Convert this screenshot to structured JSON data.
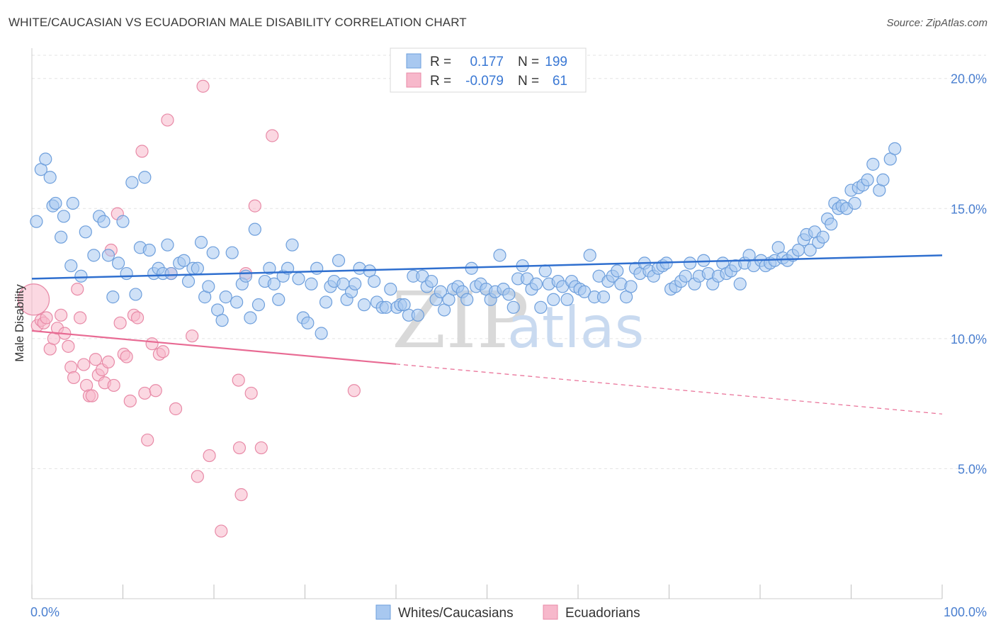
{
  "header": {
    "title": "WHITE/CAUCASIAN VS ECUADORIAN MALE DISABILITY CORRELATION CHART",
    "source": "Source: ZipAtlas.com"
  },
  "legend": {
    "rows": [
      {
        "r_label": "R =",
        "r_value": "0.177",
        "n_label": "N =",
        "n_value": "199",
        "color": "#a8c8f0"
      },
      {
        "r_label": "R =",
        "r_value": "-0.079",
        "n_label": "N =",
        "n_value": "61",
        "color": "#f7b8cb"
      }
    ]
  },
  "bottom_legend": [
    {
      "label": "Whites/Caucasians",
      "color": "#a8c8f0"
    },
    {
      "label": "Ecuadorians",
      "color": "#f7b8cb"
    }
  ],
  "watermark": {
    "zip": "ZIP",
    "atlas": "atlas"
  },
  "chart_data": {
    "type": "scatter",
    "title": "WHITE/CAUCASIAN VS ECUADORIAN MALE DISABILITY CORRELATION CHART",
    "xlabel": "",
    "ylabel": "Male Disability",
    "xlim": [
      0,
      100
    ],
    "ylim": [
      0,
      21
    ],
    "x_tick_labels": [
      "0.0%",
      "100.0%"
    ],
    "y_ticks": [
      5,
      10,
      15,
      20
    ],
    "y_tick_labels": [
      "5.0%",
      "10.0%",
      "15.0%",
      "20.0%"
    ],
    "grid": true,
    "colors": {
      "blue_fill": "#a8c8f0",
      "blue_stroke": "#6e9fdc",
      "blue_line": "#2f6fcf",
      "pink_fill": "#f7b8cb",
      "pink_stroke": "#e88aa7",
      "pink_line": "#e86a93"
    },
    "series": [
      {
        "name": "Whites/Caucasians",
        "trend": {
          "x0": 0,
          "y0": 12.3,
          "x1": 100,
          "y1": 13.2,
          "dashed_from": null
        },
        "points": [
          [
            0.5,
            14.5
          ],
          [
            1,
            16.5
          ],
          [
            1.5,
            16.9
          ],
          [
            2,
            16.2
          ],
          [
            2.3,
            15.1
          ],
          [
            2.6,
            15.2
          ],
          [
            3.2,
            13.9
          ],
          [
            3.5,
            14.7
          ],
          [
            4.3,
            12.8
          ],
          [
            4.5,
            15.2
          ],
          [
            5.4,
            12.4
          ],
          [
            5.9,
            14.1
          ],
          [
            6.8,
            13.2
          ],
          [
            7.4,
            14.7
          ],
          [
            7.9,
            14.5
          ],
          [
            8.4,
            13.2
          ],
          [
            8.9,
            11.6
          ],
          [
            9.5,
            12.9
          ],
          [
            10,
            14.5
          ],
          [
            10.4,
            12.5
          ],
          [
            11,
            16
          ],
          [
            11.4,
            11.7
          ],
          [
            11.9,
            13.5
          ],
          [
            12.4,
            16.2
          ],
          [
            12.9,
            13.4
          ],
          [
            13.4,
            12.5
          ],
          [
            13.9,
            12.7
          ],
          [
            14.4,
            12.5
          ],
          [
            14.9,
            13.6
          ],
          [
            15.3,
            12.5
          ],
          [
            16.2,
            12.9
          ],
          [
            16.7,
            13
          ],
          [
            17.2,
            12.2
          ],
          [
            17.7,
            12.7
          ],
          [
            18.2,
            12.7
          ],
          [
            18.6,
            13.7
          ],
          [
            19,
            11.6
          ],
          [
            19.4,
            12
          ],
          [
            19.9,
            13.3
          ],
          [
            20.4,
            11.1
          ],
          [
            20.9,
            10.7
          ],
          [
            21.3,
            11.6
          ],
          [
            22,
            13.3
          ],
          [
            22.5,
            11.4
          ],
          [
            23.1,
            12.1
          ],
          [
            23.5,
            12.4
          ],
          [
            24,
            10.8
          ],
          [
            24.5,
            14.2
          ],
          [
            24.9,
            11.3
          ],
          [
            25.6,
            12.2
          ],
          [
            26.1,
            12.7
          ],
          [
            26.6,
            12.1
          ],
          [
            27.1,
            11.5
          ],
          [
            27.6,
            12.4
          ],
          [
            28.1,
            12.7
          ],
          [
            28.6,
            13.6
          ],
          [
            29.3,
            12.3
          ],
          [
            29.8,
            10.8
          ],
          [
            30.3,
            10.6
          ],
          [
            30.7,
            12.1
          ],
          [
            31.3,
            12.7
          ],
          [
            31.8,
            10.2
          ],
          [
            32.3,
            11.4
          ],
          [
            32.8,
            12
          ],
          [
            33.2,
            12.2
          ],
          [
            33.7,
            13
          ],
          [
            34.2,
            12.1
          ],
          [
            34.6,
            11.5
          ],
          [
            35.1,
            11.8
          ],
          [
            35.5,
            12.1
          ],
          [
            36,
            12.7
          ],
          [
            36.5,
            11.3
          ],
          [
            37.1,
            12.6
          ],
          [
            37.6,
            12.2
          ],
          [
            37.9,
            11.4
          ],
          [
            38.5,
            11.2
          ],
          [
            38.9,
            11.2
          ],
          [
            39.4,
            11.9
          ],
          [
            40.1,
            11.2
          ],
          [
            40.5,
            11.3
          ],
          [
            40.9,
            11.3
          ],
          [
            41.4,
            10.9
          ],
          [
            41.9,
            12.4
          ],
          [
            42.4,
            10.9
          ],
          [
            42.9,
            12.4
          ],
          [
            43.4,
            12
          ],
          [
            43.9,
            12.2
          ],
          [
            44.4,
            11.5
          ],
          [
            44.9,
            11.8
          ],
          [
            45.3,
            11.1
          ],
          [
            45.8,
            11.5
          ],
          [
            46.3,
            11.9
          ],
          [
            46.8,
            12
          ],
          [
            47.3,
            11.8
          ],
          [
            47.8,
            11.5
          ],
          [
            48.3,
            12.7
          ],
          [
            48.8,
            12
          ],
          [
            49.3,
            12.1
          ],
          [
            49.9,
            11.9
          ],
          [
            50.4,
            11.5
          ],
          [
            50.9,
            11.8
          ],
          [
            51.4,
            13.2
          ],
          [
            51.8,
            11.9
          ],
          [
            52.4,
            11.7
          ],
          [
            52.9,
            11.2
          ],
          [
            53.4,
            12.3
          ],
          [
            53.9,
            12.8
          ],
          [
            54.4,
            12.3
          ],
          [
            54.9,
            11.9
          ],
          [
            55.4,
            12.1
          ],
          [
            55.9,
            11.2
          ],
          [
            56.4,
            12.6
          ],
          [
            56.8,
            12.1
          ],
          [
            57.3,
            11.5
          ],
          [
            57.8,
            12.2
          ],
          [
            58.3,
            12
          ],
          [
            58.8,
            11.5
          ],
          [
            59.3,
            12.2
          ],
          [
            59.7,
            12
          ],
          [
            60.2,
            11.9
          ],
          [
            60.7,
            11.8
          ],
          [
            61.3,
            13.2
          ],
          [
            61.8,
            11.6
          ],
          [
            62.3,
            12.4
          ],
          [
            62.8,
            11.6
          ],
          [
            63.3,
            12.2
          ],
          [
            63.8,
            12.4
          ],
          [
            64.3,
            12.6
          ],
          [
            64.7,
            12.1
          ],
          [
            65.3,
            11.6
          ],
          [
            65.8,
            12
          ],
          [
            66.3,
            12.7
          ],
          [
            66.8,
            12.5
          ],
          [
            67.3,
            12.9
          ],
          [
            67.8,
            12.6
          ],
          [
            68.3,
            12.4
          ],
          [
            68.8,
            12.7
          ],
          [
            69.3,
            12.8
          ],
          [
            69.7,
            12.9
          ],
          [
            70.2,
            11.9
          ],
          [
            70.7,
            12
          ],
          [
            71.3,
            12.2
          ],
          [
            71.8,
            12.4
          ],
          [
            72.3,
            12.9
          ],
          [
            72.8,
            12.1
          ],
          [
            73.3,
            12.4
          ],
          [
            73.8,
            13
          ],
          [
            74.3,
            12.5
          ],
          [
            74.8,
            12.1
          ],
          [
            75.4,
            12.4
          ],
          [
            75.9,
            12.9
          ],
          [
            76.3,
            12.5
          ],
          [
            76.8,
            12.6
          ],
          [
            77.3,
            12.8
          ],
          [
            77.8,
            12.1
          ],
          [
            78.3,
            12.9
          ],
          [
            78.8,
            13.2
          ],
          [
            79.3,
            12.8
          ],
          [
            80.1,
            13
          ],
          [
            80.6,
            12.8
          ],
          [
            81.1,
            12.9
          ],
          [
            81.6,
            13
          ],
          [
            82,
            13.5
          ],
          [
            82.5,
            13.1
          ],
          [
            83,
            13
          ],
          [
            83.6,
            13.2
          ],
          [
            84.2,
            13.4
          ],
          [
            84.8,
            13.8
          ],
          [
            85.1,
            14
          ],
          [
            85.5,
            13.4
          ],
          [
            86,
            14.1
          ],
          [
            86.4,
            13.7
          ],
          [
            86.9,
            13.9
          ],
          [
            87.4,
            14.6
          ],
          [
            87.8,
            14.4
          ],
          [
            88.2,
            15.2
          ],
          [
            88.6,
            15
          ],
          [
            89,
            15.1
          ],
          [
            89.5,
            15
          ],
          [
            90,
            15.7
          ],
          [
            90.4,
            15.2
          ],
          [
            90.8,
            15.8
          ],
          [
            91.3,
            15.9
          ],
          [
            91.8,
            16.1
          ],
          [
            92.4,
            16.7
          ],
          [
            93.1,
            15.7
          ],
          [
            93.5,
            16.1
          ],
          [
            94.3,
            16.9
          ],
          [
            94.8,
            17.3
          ]
        ]
      },
      {
        "name": "Ecuadorians",
        "trend": {
          "x0": 0,
          "y0": 10.3,
          "x1": 100,
          "y1": 7.1,
          "dashed_from": 40
        },
        "points": [
          [
            0.2,
            11.5
          ],
          [
            0.6,
            10.5
          ],
          [
            1,
            10.7
          ],
          [
            1.3,
            10.6
          ],
          [
            1.6,
            10.8
          ],
          [
            2,
            9.6
          ],
          [
            2.4,
            10
          ],
          [
            2.8,
            10.4
          ],
          [
            3.2,
            10.9
          ],
          [
            3.6,
            10.2
          ],
          [
            4,
            9.7
          ],
          [
            4.3,
            8.9
          ],
          [
            4.6,
            8.5
          ],
          [
            5,
            11.9
          ],
          [
            5.3,
            10.8
          ],
          [
            5.7,
            9
          ],
          [
            6,
            8.2
          ],
          [
            6.3,
            7.8
          ],
          [
            6.6,
            7.8
          ],
          [
            7,
            9.2
          ],
          [
            7.3,
            8.6
          ],
          [
            7.7,
            8.8
          ],
          [
            8,
            8.3
          ],
          [
            8.4,
            9.1
          ],
          [
            8.7,
            13.4
          ],
          [
            9,
            8.2
          ],
          [
            9.4,
            14.8
          ],
          [
            9.7,
            10.6
          ],
          [
            10.1,
            9.4
          ],
          [
            10.4,
            9.3
          ],
          [
            10.8,
            7.6
          ],
          [
            11.2,
            10.9
          ],
          [
            11.6,
            10.8
          ],
          [
            12.1,
            17.2
          ],
          [
            12.4,
            7.9
          ],
          [
            12.7,
            6.1
          ],
          [
            13.2,
            9.8
          ],
          [
            13.6,
            8
          ],
          [
            14,
            9.4
          ],
          [
            14.4,
            9.5
          ],
          [
            14.9,
            18.4
          ],
          [
            15.3,
            12.5
          ],
          [
            15.8,
            7.3
          ],
          [
            17.6,
            10.1
          ],
          [
            18.2,
            4.7
          ],
          [
            18.8,
            19.7
          ],
          [
            19.5,
            5.5
          ],
          [
            20.8,
            2.6
          ],
          [
            22.7,
            8.4
          ],
          [
            22.8,
            5.8
          ],
          [
            23,
            4
          ],
          [
            23.5,
            12.5
          ],
          [
            24.1,
            7.9
          ],
          [
            24.5,
            15.1
          ],
          [
            25.2,
            5.8
          ],
          [
            26.4,
            17.8
          ],
          [
            35.4,
            8
          ]
        ]
      }
    ]
  }
}
